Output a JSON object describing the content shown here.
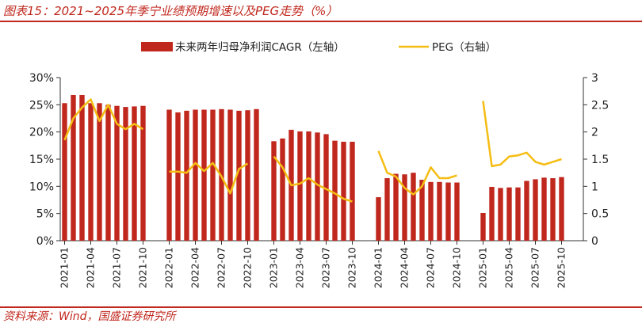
{
  "header": {
    "title": "图表15：2021~2025年季宁业绩预期增速以及PEG走势（%）",
    "source": "资料来源：Wind，国盛证券研究所"
  },
  "colors": {
    "bar": "#c0271d",
    "line": "#f5bd13",
    "accent": "#c0271d"
  },
  "chart_data": {
    "type": "bar",
    "title": "2021~2025年季宁业绩预期增速以及PEG走势（%）",
    "legend_position": "top",
    "grid": false,
    "categories": [
      "2021-01",
      "2021-02",
      "2021-03",
      "2021-04",
      "2021-05",
      "2021-06",
      "2021-07",
      "2021-08",
      "2021-09",
      "2021-10",
      "2021-11",
      "2021-12",
      "2022-01",
      "2022-02",
      "2022-03",
      "2022-04",
      "2022-05",
      "2022-06",
      "2022-07",
      "2022-08",
      "2022-09",
      "2022-10",
      "2022-11",
      "2022-12",
      "2023-01",
      "2023-02",
      "2023-03",
      "2023-04",
      "2023-05",
      "2023-06",
      "2023-07",
      "2023-08",
      "2023-09",
      "2023-10",
      "2023-11",
      "2023-12",
      "2024-01",
      "2024-02",
      "2024-03",
      "2024-04",
      "2024-05",
      "2024-06",
      "2024-07",
      "2024-08",
      "2024-09",
      "2024-10",
      "2024-11",
      "2024-12",
      "2025-01",
      "2025-02",
      "2025-03",
      "2025-04",
      "2025-05",
      "2025-06",
      "2025-07",
      "2025-08",
      "2025-09",
      "2025-10",
      "2025-11",
      "2025-12"
    ],
    "x_tick_labels": [
      "2021-01",
      "2021-04",
      "2021-07",
      "2021-10",
      "2022-01",
      "2022-04",
      "2022-07",
      "2022-10",
      "2023-01",
      "2023-04",
      "2023-07",
      "2023-10",
      "2024-01",
      "2024-04",
      "2024-07",
      "2024-10",
      "2025-01",
      "2025-04",
      "2025-07",
      "2025-10"
    ],
    "y_left": {
      "ylim": [
        0,
        0.3
      ],
      "ticks": [
        "0%",
        "5%",
        "10%",
        "15%",
        "20%",
        "25%",
        "30%"
      ],
      "tick_values": [
        0,
        0.05,
        0.1,
        0.15,
        0.2,
        0.25,
        0.3
      ]
    },
    "y_right": {
      "ylim": [
        0,
        3
      ],
      "ticks": [
        "0",
        "0.5",
        "1",
        "1.5",
        "2",
        "2.5",
        "3"
      ],
      "tick_values": [
        0,
        0.5,
        1,
        1.5,
        2,
        2.5,
        3
      ]
    },
    "series": [
      {
        "name": "未来两年归母净利润CAGR（左轴）",
        "type": "bar",
        "axis": "left",
        "values": [
          0.253,
          0.268,
          0.268,
          0.253,
          0.253,
          0.25,
          0.248,
          0.246,
          0.247,
          0.248,
          null,
          null,
          0.241,
          0.236,
          0.239,
          0.241,
          0.241,
          0.241,
          0.242,
          0.241,
          0.239,
          0.24,
          0.242,
          null,
          0.183,
          0.188,
          0.204,
          0.201,
          0.201,
          0.199,
          0.196,
          0.184,
          0.182,
          0.182,
          null,
          null,
          0.08,
          0.115,
          0.123,
          0.122,
          0.125,
          0.112,
          0.108,
          0.108,
          0.107,
          0.107,
          null,
          null,
          0.051,
          0.099,
          0.097,
          0.098,
          0.098,
          0.11,
          0.113,
          0.116,
          0.115,
          0.117,
          null,
          null
        ]
      },
      {
        "name": "PEG（右轴）",
        "type": "line",
        "axis": "right",
        "values": [
          1.85,
          2.25,
          2.45,
          2.6,
          2.2,
          2.5,
          2.15,
          2.05,
          2.15,
          2.05,
          null,
          null,
          1.27,
          1.27,
          1.25,
          1.43,
          1.28,
          1.43,
          1.18,
          0.87,
          1.32,
          1.42,
          null,
          null,
          1.55,
          1.35,
          1.02,
          1.05,
          1.15,
          1.03,
          0.95,
          0.87,
          0.77,
          0.72,
          null,
          null,
          1.65,
          1.25,
          1.18,
          0.97,
          0.85,
          1.0,
          1.35,
          1.15,
          1.15,
          1.2,
          null,
          null,
          2.57,
          1.37,
          1.4,
          1.55,
          1.57,
          1.62,
          1.45,
          1.4,
          1.45,
          1.5,
          null,
          null
        ]
      }
    ]
  }
}
